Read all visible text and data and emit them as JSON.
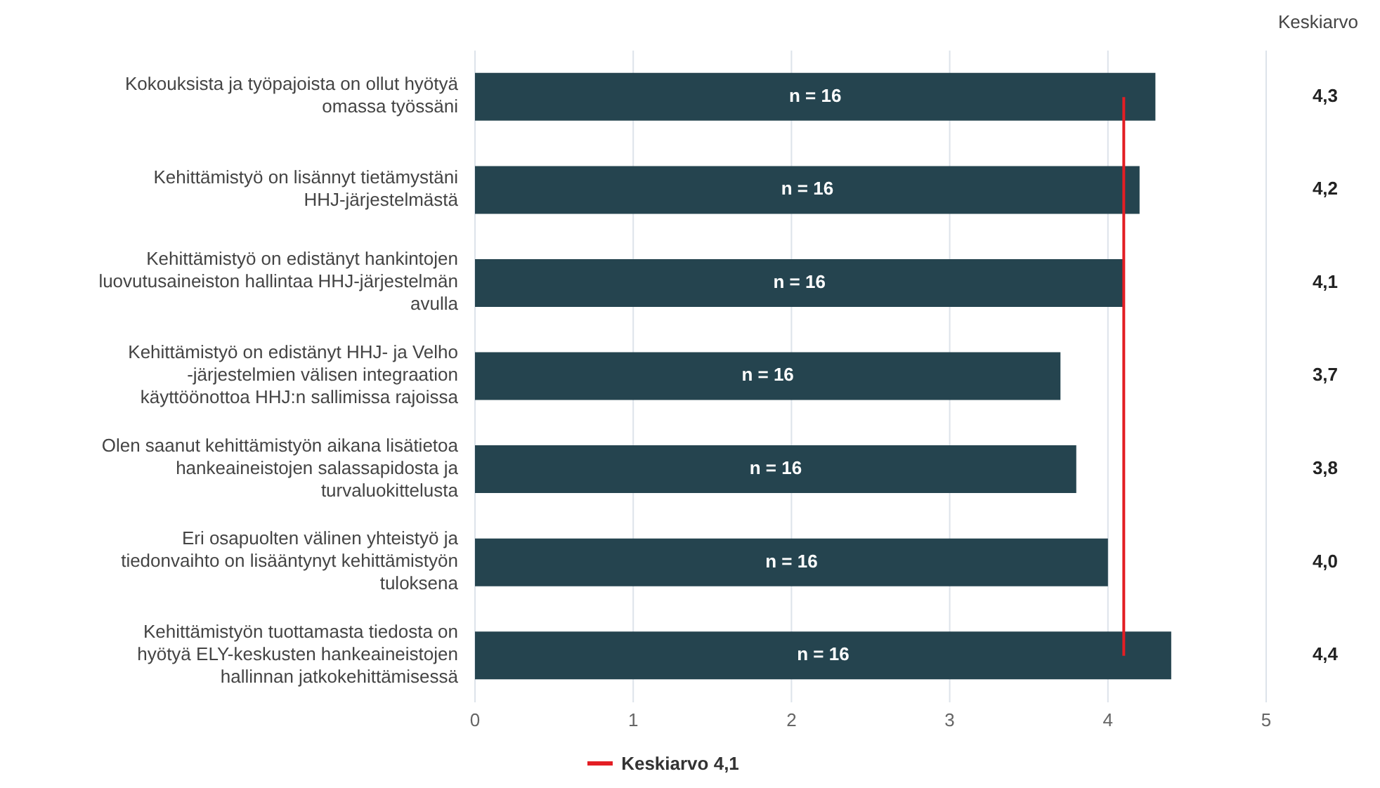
{
  "chart_data": {
    "type": "bar",
    "orientation": "horizontal",
    "categories": [
      "Kokouksista ja työpajoista on ollut hyötyä omassa työssäni",
      "Kehittämistyö on lisännyt tietämystäni HHJ-järjestelmästä",
      "Kehittämistyö on edistänyt hankintojen luovutusaineiston hallintaa HHJ-järjestelmän avulla",
      "Kehittämistyö on edistänyt HHJ- ja Velho -järjestelmien välisen integraation käyttöönottoa HHJ:n sallimissa rajoissa",
      "Olen saanut kehittämistyön aikana lisätietoa hankeaineistojen salassapidosta ja turvaluokittelusta",
      "Eri osapuolten välinen yhteistyö ja tiedonvaihto on lisääntynyt kehittämistyön tuloksena",
      "Kehittämistyön tuottamasta tiedosta on hyötyä ELY-keskusten hankeaineistojen hallinnan jatkokehittämisessä"
    ],
    "values": [
      4.3,
      4.2,
      4.1,
      3.7,
      3.8,
      4.0,
      4.4
    ],
    "value_labels": [
      "4,3",
      "4,2",
      "4,1",
      "3,7",
      "3,8",
      "4,0",
      "4,4"
    ],
    "color": "#25444f",
    "xlim": [
      0,
      5
    ],
    "xticks": [
      0,
      1,
      2,
      3,
      4,
      5
    ],
    "grid": "x",
    "legend": "bottom",
    "ref_lines": [
      {
        "axis": "x",
        "value": 4.1,
        "label": "Keskiarvo 4,1",
        "color": "#e31e24"
      }
    ],
    "annotations": [
      "Keskiarvo",
      "n = 16",
      "n = 16",
      "n = 16",
      "n = 16",
      "n = 16",
      "n = 16",
      "n = 16"
    ]
  }
}
